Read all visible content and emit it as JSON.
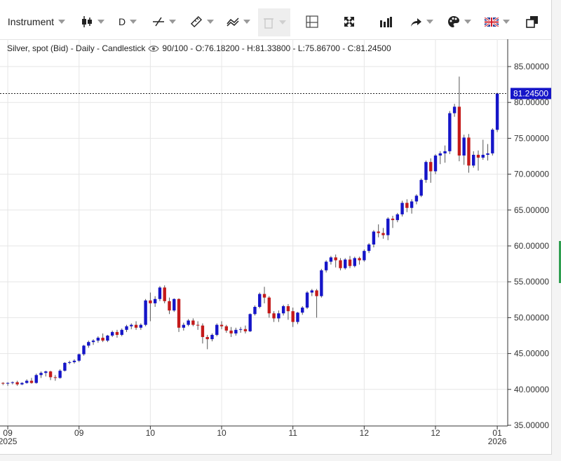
{
  "toolbar": {
    "instrument_label": "Instrument",
    "timeframe_label": "D",
    "icons": [
      "candlestick-icon",
      "trendline-icon",
      "ruler-icon",
      "indicator-icon",
      "trash-icon",
      "layout-icon",
      "fullscreen-icon",
      "bars-icon",
      "share-icon",
      "palette-icon",
      "uk-flag-icon",
      "popout-icon"
    ]
  },
  "info_line": {
    "series_label": "Silver, spot (Bid) - Daily - Candlestick",
    "ohlc_text": "90/100 - O:76.18200 - H:81.33800 - L:75.86700 - C:81.24500"
  },
  "colors": {
    "up": "#1515c8",
    "down": "#c41a1a",
    "grid": "#e6e6e6",
    "price_tag_bg": "#1515c8"
  },
  "chart_data": {
    "type": "candlestick",
    "title": "Silver, spot (Bid) - Daily - Candlestick",
    "ylim": [
      35,
      90
    ],
    "y_ticks": [
      35,
      40,
      45,
      50,
      55,
      60,
      65,
      70,
      75,
      80,
      85
    ],
    "y_tick_labels": [
      "35.00000",
      "40.00000",
      "45.00000",
      "50.00000",
      "55.00000",
      "60.00000",
      "65.00000",
      "70.00000",
      "75.00000",
      "80.00000",
      "85.00000"
    ],
    "last_price": 81.245,
    "last_price_label": "81.24500",
    "x_ticks": [
      {
        "index": 1,
        "label": "09",
        "sublabel": "2025"
      },
      {
        "index": 16,
        "label": "09",
        "sublabel": ""
      },
      {
        "index": 31,
        "label": "10",
        "sublabel": ""
      },
      {
        "index": 46,
        "label": "10",
        "sublabel": ""
      },
      {
        "index": 61,
        "label": "11",
        "sublabel": ""
      },
      {
        "index": 76,
        "label": "12",
        "sublabel": ""
      },
      {
        "index": 91,
        "label": "12",
        "sublabel": ""
      },
      {
        "index": 104,
        "label": "01",
        "sublabel": "2026"
      }
    ],
    "candles": [
      [
        40.9,
        41.0,
        40.6,
        40.8
      ],
      [
        40.8,
        41.0,
        40.5,
        40.9
      ],
      [
        40.9,
        41.1,
        40.7,
        41.0
      ],
      [
        41.0,
        41.2,
        40.5,
        40.7
      ],
      [
        40.7,
        41.0,
        40.6,
        40.9
      ],
      [
        40.9,
        41.4,
        40.8,
        41.2
      ],
      [
        41.2,
        41.6,
        40.8,
        40.9
      ],
      [
        40.9,
        42.2,
        40.8,
        42.0
      ],
      [
        42.0,
        42.5,
        41.6,
        42.3
      ],
      [
        42.3,
        42.6,
        41.8,
        42.5
      ],
      [
        42.5,
        42.6,
        41.3,
        41.7
      ],
      [
        41.7,
        42.0,
        41.2,
        41.6
      ],
      [
        41.6,
        42.8,
        41.5,
        42.6
      ],
      [
        42.6,
        43.8,
        42.5,
        43.7
      ],
      [
        43.7,
        44.0,
        43.5,
        43.8
      ],
      [
        43.8,
        44.2,
        43.6,
        44.0
      ],
      [
        44.0,
        45.0,
        43.8,
        44.9
      ],
      [
        44.9,
        46.2,
        44.7,
        46.1
      ],
      [
        46.1,
        46.8,
        45.8,
        46.6
      ],
      [
        46.6,
        47.0,
        46.2,
        46.8
      ],
      [
        46.8,
        47.4,
        46.5,
        47.2
      ],
      [
        47.2,
        47.8,
        46.6,
        46.8
      ],
      [
        46.8,
        47.6,
        46.6,
        47.5
      ],
      [
        47.5,
        48.2,
        47.3,
        48.0
      ],
      [
        48.0,
        48.3,
        47.2,
        47.6
      ],
      [
        47.6,
        48.5,
        47.4,
        48.3
      ],
      [
        48.3,
        49.0,
        48.0,
        48.8
      ],
      [
        48.8,
        49.2,
        48.4,
        49.0
      ],
      [
        49.0,
        49.5,
        48.3,
        48.6
      ],
      [
        48.6,
        49.2,
        48.3,
        49.0
      ],
      [
        49.0,
        52.6,
        48.8,
        52.4
      ],
      [
        52.4,
        53.5,
        49.5,
        52.0
      ],
      [
        52.0,
        53.0,
        51.5,
        52.6
      ],
      [
        52.6,
        54.4,
        52.3,
        54.2
      ],
      [
        54.2,
        54.5,
        52.0,
        52.3
      ],
      [
        52.3,
        52.8,
        50.5,
        51.0
      ],
      [
        51.0,
        52.7,
        50.8,
        52.6
      ],
      [
        52.6,
        52.7,
        48.0,
        48.6
      ],
      [
        48.6,
        49.3,
        48.2,
        49.0
      ],
      [
        49.0,
        49.8,
        48.8,
        49.6
      ],
      [
        49.6,
        49.9,
        48.8,
        49.0
      ],
      [
        49.0,
        49.5,
        48.3,
        48.9
      ],
      [
        48.9,
        49.2,
        46.4,
        47.3
      ],
      [
        47.3,
        47.6,
        45.6,
        47.0
      ],
      [
        47.0,
        47.8,
        46.7,
        47.6
      ],
      [
        47.6,
        49.2,
        47.4,
        49.0
      ],
      [
        49.0,
        49.5,
        48.4,
        48.8
      ],
      [
        48.8,
        49.0,
        47.9,
        48.2
      ],
      [
        48.2,
        48.7,
        47.3,
        47.8
      ],
      [
        47.8,
        48.6,
        47.5,
        48.3
      ],
      [
        48.3,
        48.7,
        47.9,
        48.4
      ],
      [
        48.4,
        48.9,
        47.8,
        48.1
      ],
      [
        48.1,
        50.6,
        48.0,
        50.5
      ],
      [
        50.5,
        51.7,
        50.3,
        51.5
      ],
      [
        51.5,
        53.5,
        51.3,
        53.3
      ],
      [
        53.3,
        54.3,
        52.0,
        52.8
      ],
      [
        52.8,
        53.0,
        50.0,
        50.6
      ],
      [
        50.6,
        50.9,
        49.4,
        49.9
      ],
      [
        49.9,
        51.0,
        49.4,
        50.6
      ],
      [
        50.6,
        51.8,
        50.3,
        51.6
      ],
      [
        51.6,
        51.9,
        49.7,
        50.9
      ],
      [
        50.9,
        51.4,
        48.7,
        49.4
      ],
      [
        49.4,
        50.8,
        49.1,
        50.7
      ],
      [
        50.7,
        51.6,
        50.4,
        51.4
      ],
      [
        51.4,
        53.7,
        51.2,
        53.5
      ],
      [
        53.5,
        54.0,
        53.0,
        53.8
      ],
      [
        53.8,
        54.0,
        50.0,
        53.0
      ],
      [
        53.0,
        56.8,
        52.8,
        56.6
      ],
      [
        56.6,
        58.0,
        56.3,
        57.8
      ],
      [
        57.8,
        58.6,
        57.4,
        58.4
      ],
      [
        58.4,
        58.8,
        57.0,
        58.0
      ],
      [
        58.0,
        58.3,
        56.6,
        56.9
      ],
      [
        56.9,
        58.3,
        56.7,
        58.1
      ],
      [
        58.1,
        58.6,
        56.9,
        57.2
      ],
      [
        57.2,
        58.5,
        57.0,
        58.3
      ],
      [
        58.3,
        58.5,
        57.4,
        58.0
      ],
      [
        58.0,
        59.5,
        57.8,
        59.3
      ],
      [
        59.3,
        60.4,
        59.0,
        60.2
      ],
      [
        60.2,
        62.2,
        59.8,
        62.0
      ],
      [
        62.0,
        63.0,
        61.2,
        61.8
      ],
      [
        61.8,
        62.5,
        61.0,
        61.5
      ],
      [
        61.5,
        64.0,
        60.8,
        63.8
      ],
      [
        63.8,
        64.2,
        62.5,
        63.6
      ],
      [
        63.6,
        64.6,
        63.3,
        64.4
      ],
      [
        64.4,
        66.3,
        64.1,
        66.0
      ],
      [
        66.0,
        66.5,
        64.7,
        65.3
      ],
      [
        65.3,
        66.5,
        64.5,
        66.2
      ],
      [
        66.2,
        67.2,
        65.8,
        67.0
      ],
      [
        67.0,
        69.4,
        66.8,
        69.2
      ],
      [
        69.2,
        71.9,
        68.8,
        71.7
      ],
      [
        71.7,
        72.2,
        68.8,
        70.4
      ],
      [
        70.4,
        72.8,
        70.0,
        72.6
      ],
      [
        72.6,
        73.2,
        71.4,
        72.9
      ],
      [
        72.9,
        74.0,
        71.6,
        73.2
      ],
      [
        73.2,
        78.8,
        72.8,
        78.5
      ],
      [
        78.5,
        79.8,
        78.0,
        79.4
      ],
      [
        79.4,
        83.6,
        71.8,
        72.6
      ],
      [
        72.6,
        75.5,
        71.3,
        75.1
      ],
      [
        75.1,
        75.6,
        70.2,
        71.2
      ],
      [
        71.2,
        73.2,
        70.9,
        72.7
      ],
      [
        72.7,
        73.3,
        70.5,
        72.3
      ],
      [
        72.3,
        74.8,
        72.0,
        72.7
      ],
      [
        72.7,
        74.2,
        71.9,
        72.9
      ],
      [
        72.9,
        76.4,
        72.6,
        76.2
      ],
      [
        76.18,
        81.338,
        75.867,
        81.245
      ]
    ]
  }
}
